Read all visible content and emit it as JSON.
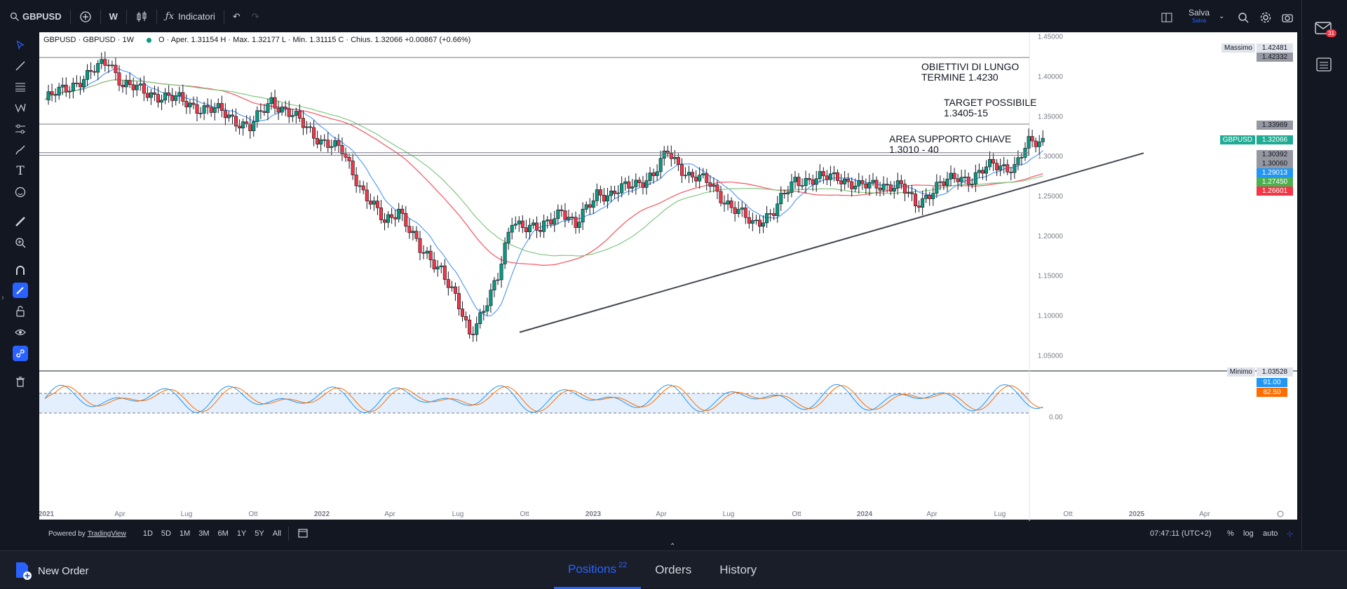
{
  "toolbar": {
    "symbol": "GBPUSD",
    "interval": "W",
    "indicators_label": "Indicatori",
    "save_label": "Salva",
    "save_sub": "Salva"
  },
  "legend": {
    "title": "GBPUSD · GBPUSD · 1W",
    "ohlc": "O · Aper. 1.31154  H · Max. 1.32177  L · Min. 1.31115  C · Chius. 1.32066  +0.00867 (+0.66%)"
  },
  "chart_data": {
    "type": "candlestick",
    "x_ticks": [
      "2021",
      "Apr",
      "Lug",
      "Ott",
      "2022",
      "Apr",
      "Lug",
      "Ott",
      "2023",
      "Apr",
      "Lug",
      "Ott",
      "2024",
      "Apr",
      "Lug",
      "Ott",
      "2025",
      "Apr"
    ],
    "y_ticks": [
      "1.45000",
      "1.40000",
      "1.35000",
      "1.30000",
      "1.25000",
      "1.20000",
      "1.15000",
      "1.10000",
      "1.05000"
    ],
    "ylim": [
      1.03,
      1.455
    ],
    "osc_ticks": [
      "0.00"
    ],
    "annotations": [
      {
        "line1": "OBIETTIVI DI LUNGO",
        "line2": "TERMINE 1.4230"
      },
      {
        "line1": "TARGET POSSIBILE",
        "line2": "1.3405-15"
      },
      {
        "line1": "AREA SUPPORTO CHIAVE",
        "line2": "1.3010 - 40"
      }
    ],
    "levels": [
      {
        "label": "Massimo",
        "value": "1.42481",
        "color": "#e0e3eb",
        "text": "#131722"
      },
      {
        "label": "",
        "value": "1.42332",
        "color": "#9598a1",
        "text": "#131722"
      },
      {
        "label": "",
        "value": "1.33969",
        "color": "#9598a1",
        "text": "#131722"
      },
      {
        "label": "GBPUSD",
        "value": "1.32066",
        "color": "#22ab94",
        "text": "#ffffff"
      },
      {
        "label": "",
        "value": "1.30392",
        "color": "#9598a1",
        "text": "#131722"
      },
      {
        "label": "",
        "value": "1.30060",
        "color": "#9598a1",
        "text": "#131722"
      },
      {
        "label": "",
        "value": "1.29013",
        "color": "#2196f3",
        "text": "#ffffff"
      },
      {
        "label": "",
        "value": "1.27450",
        "color": "#4caf50",
        "text": "#ffffff"
      },
      {
        "label": "",
        "value": "1.26601",
        "color": "#f23645",
        "text": "#ffffff"
      },
      {
        "label": "Minimo",
        "value": "1.03528",
        "color": "#e0e3eb",
        "text": "#131722"
      }
    ],
    "osc_values": [
      {
        "value": "91.00",
        "color": "#2196f3"
      },
      {
        "value": "82.50",
        "color": "#ff6d00"
      }
    ]
  },
  "bottom": {
    "powered": "Powered by",
    "tv": "TradingView",
    "timeframes": [
      "1D",
      "5D",
      "1M",
      "3M",
      "6M",
      "1Y",
      "5Y",
      "All"
    ],
    "time": "07:47:11 (UTC+2)",
    "pct": "%",
    "log": "log",
    "auto": "auto"
  },
  "orders": {
    "new_order": "New Order",
    "tabs": [
      {
        "label": "Positions",
        "count": "22"
      },
      {
        "label": "Orders",
        "count": ""
      },
      {
        "label": "History",
        "count": ""
      }
    ]
  },
  "notif_count": "31"
}
